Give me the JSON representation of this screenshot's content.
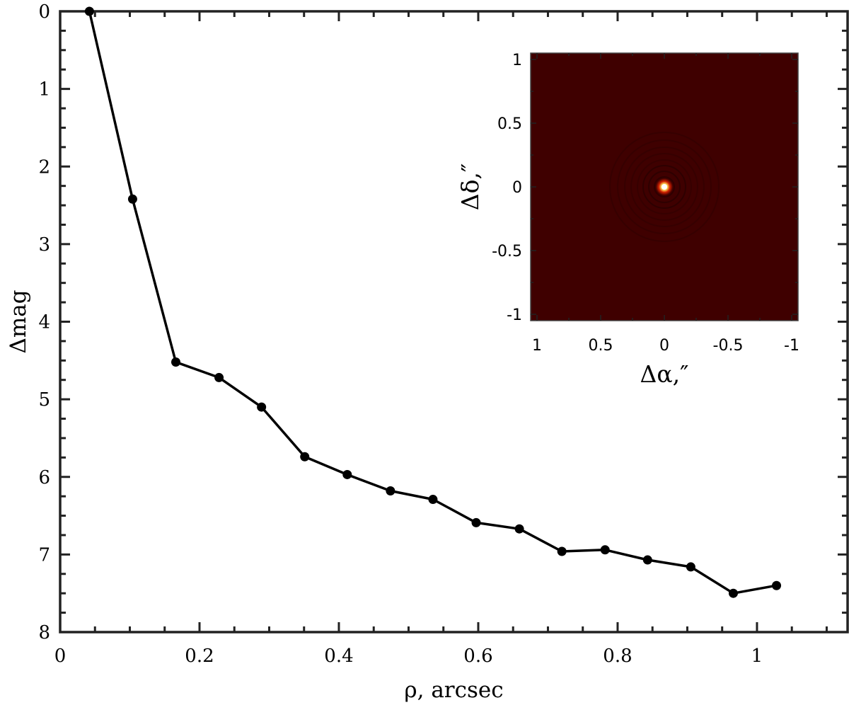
{
  "chart_data": [
    {
      "type": "line",
      "xlabel": "ρ, arcsec",
      "ylabel": "Δmag",
      "xlim": [
        0,
        1.13
      ],
      "ylim": [
        8,
        0
      ],
      "y_reversed": true,
      "xticks": [
        0,
        0.2,
        0.4,
        0.6,
        0.8,
        1
      ],
      "xtick_labels": [
        "0",
        "0.2",
        "0.4",
        "0.6",
        "0.8",
        "1"
      ],
      "yticks": [
        0,
        1,
        2,
        3,
        4,
        5,
        6,
        7,
        8
      ],
      "ytick_labels": [
        "0",
        "1",
        "2",
        "3",
        "4",
        "5",
        "6",
        "7",
        "8"
      ],
      "x": [
        0.042,
        0.104,
        0.166,
        0.228,
        0.289,
        0.351,
        0.412,
        0.474,
        0.535,
        0.597,
        0.659,
        0.72,
        0.782,
        0.843,
        0.905,
        0.966,
        1.028
      ],
      "y": [
        0.0,
        2.42,
        4.52,
        4.72,
        5.1,
        5.74,
        5.97,
        6.18,
        6.29,
        6.59,
        6.67,
        6.96,
        6.94,
        7.07,
        7.16,
        7.5,
        7.4
      ],
      "line_color": "#000000",
      "grid": false
    },
    {
      "type": "heatmap",
      "xlabel": "Δα,″",
      "ylabel": "Δδ,″",
      "xlim": [
        1.05,
        -1.05
      ],
      "ylim": [
        -1.05,
        1.05
      ],
      "xticks": [
        1,
        0.5,
        0,
        -0.5,
        -1
      ],
      "xtick_labels": [
        "1",
        "0.5",
        "0",
        "-0.5",
        "-1"
      ],
      "yticks": [
        1,
        0.5,
        0,
        -0.5,
        -1
      ],
      "ytick_labels": [
        "1",
        "0.5",
        "0",
        "-0.5",
        "-1"
      ],
      "background_color": "#3f0000",
      "peak_color": "#ffffff",
      "peak_position": [
        0,
        0
      ]
    }
  ]
}
